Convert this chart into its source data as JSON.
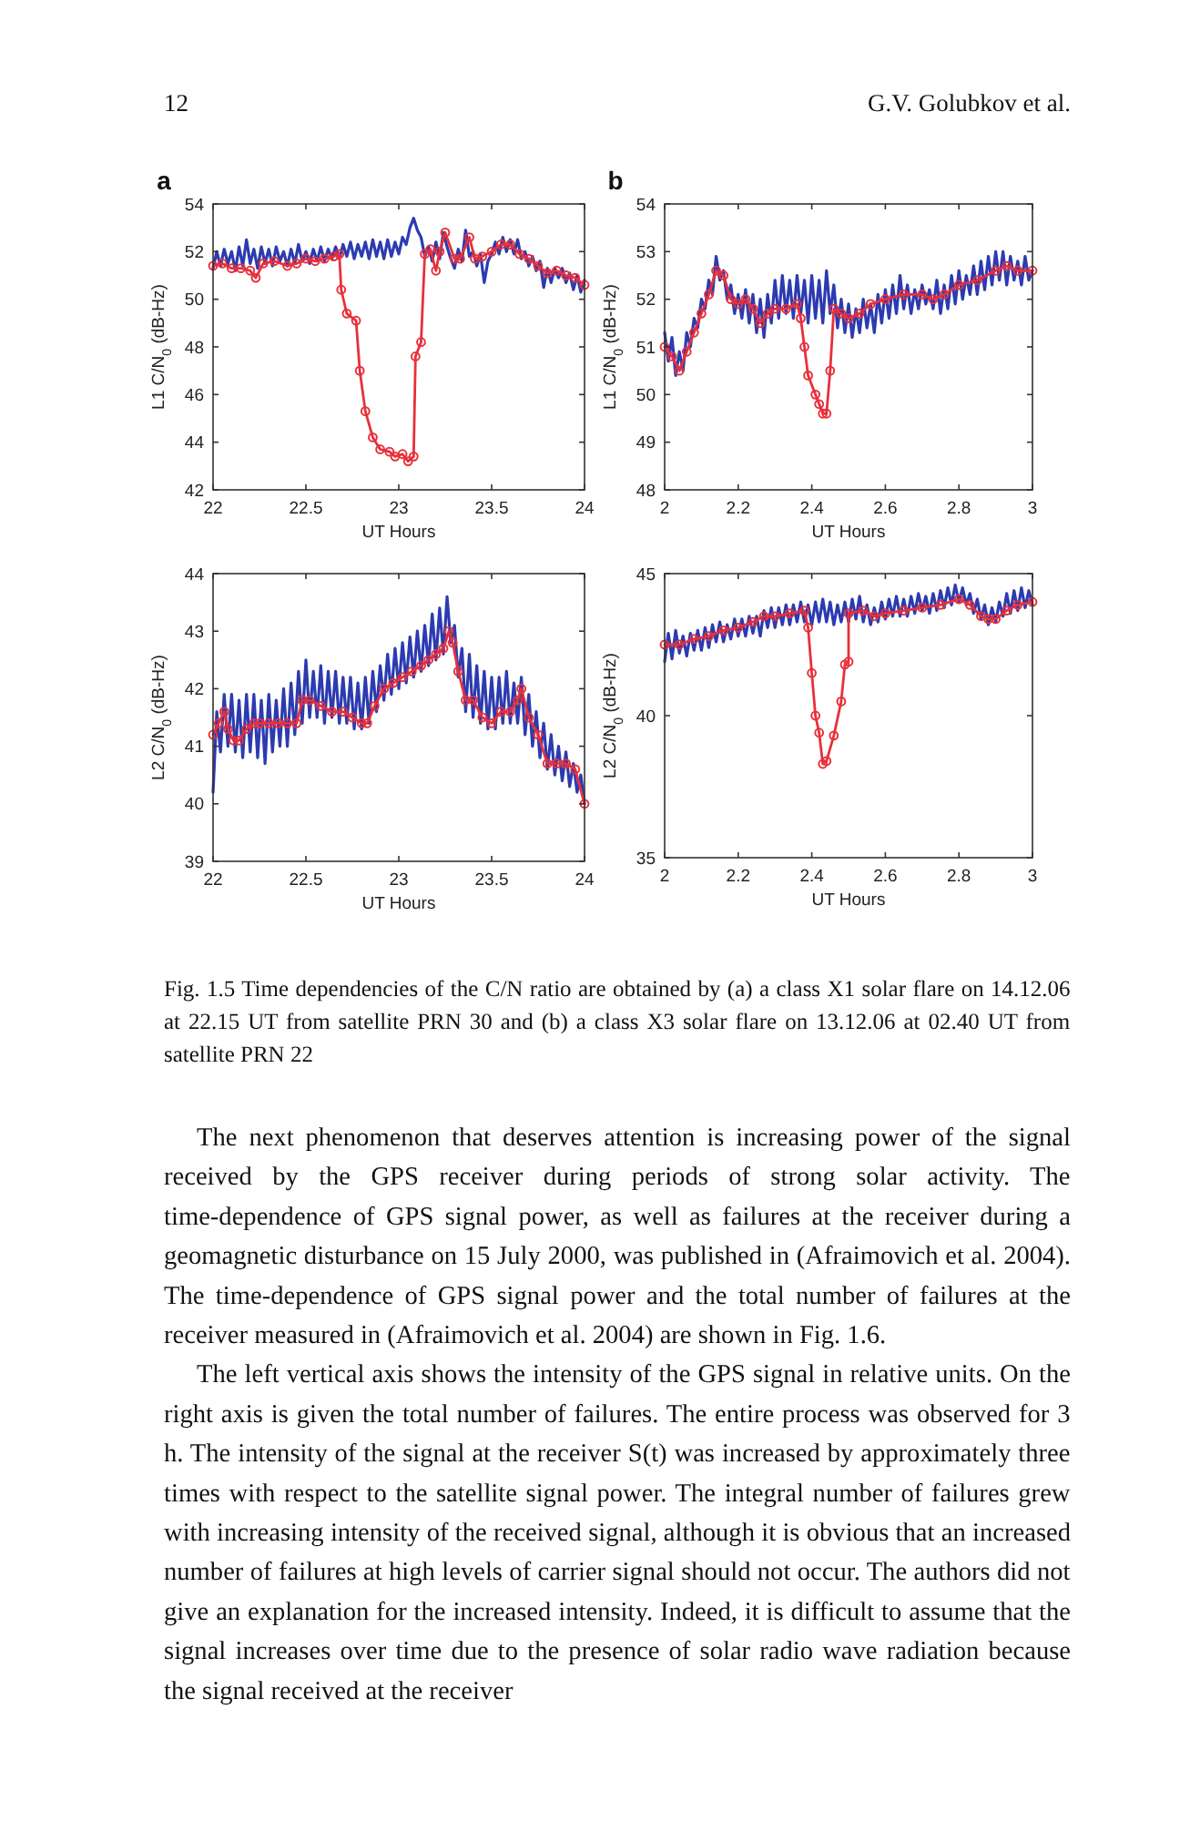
{
  "chart_data": [
    {
      "type": "other",
      "annotations": [
        "12",
        "G.V. Golubkov et al."
      ]
    },
    {
      "type": "line",
      "title": "a",
      "xlabel": "UT Hours",
      "ylabel": "L1 C/N$_{0}$ (dB-Hz)",
      "xlim": [
        22,
        24
      ],
      "xticks": [
        22,
        22.5,
        23,
        23.5,
        24
      ],
      "ylim": [
        42,
        54
      ],
      "yticks": [
        42,
        44,
        46,
        48,
        50,
        52,
        54
      ],
      "series": [
        {
          "color": "#2c3bb0",
          "marker": "none",
          "x": [
            22,
            22.02,
            22.04,
            22.06,
            22.08,
            22.1,
            22.12,
            22.14,
            22.16,
            22.18,
            22.2,
            22.22,
            22.24,
            22.26,
            22.28,
            22.3,
            22.32,
            22.34,
            22.36,
            22.38,
            22.4,
            22.42,
            22.44,
            22.46,
            22.48,
            22.5,
            22.52,
            22.54,
            22.56,
            22.58,
            22.6,
            22.62,
            22.64,
            22.66,
            22.68,
            22.7,
            22.72,
            22.74,
            22.76,
            22.78,
            22.8,
            22.82,
            22.84,
            22.86,
            22.88,
            22.9,
            22.92,
            22.94,
            22.96,
            22.98,
            23,
            23.02,
            23.04,
            23.06,
            23.08,
            23.1,
            23.12,
            23.14,
            23.16,
            23.18,
            23.2,
            23.22,
            23.24,
            23.26,
            23.28,
            23.3,
            23.32,
            23.34,
            23.36,
            23.38,
            23.4,
            23.42,
            23.44,
            23.46,
            23.48,
            23.5,
            23.52,
            23.54,
            23.56,
            23.58,
            23.6,
            23.62,
            23.64,
            23.66,
            23.68,
            23.7,
            23.72,
            23.74,
            23.76,
            23.78,
            23.8,
            23.82,
            23.84,
            23.86,
            23.88,
            23.9,
            23.92,
            23.94,
            23.96,
            23.98,
            24
          ],
          "values": [
            51.3,
            52.0,
            51.4,
            52.1,
            51.5,
            52.0,
            51.2,
            52.2,
            51.4,
            52.5,
            51.5,
            52.1,
            51.3,
            52.2,
            51.5,
            52.1,
            51.4,
            52.2,
            51.6,
            52.0,
            51.4,
            52.1,
            51.5,
            52.3,
            51.6,
            52.0,
            51.5,
            52.1,
            51.6,
            52.2,
            51.6,
            52.1,
            51.7,
            52.2,
            51.7,
            52.3,
            51.8,
            52.4,
            51.7,
            52.3,
            51.8,
            52.4,
            51.7,
            52.5,
            51.8,
            52.4,
            51.7,
            52.5,
            51.8,
            52.4,
            51.9,
            52.6,
            52.3,
            53.0,
            53.4,
            52.9,
            52.6,
            51.8,
            52.2,
            51.6,
            52.4,
            51.7,
            52.8,
            52.2,
            51.7,
            51.3,
            52.1,
            51.6,
            52.9,
            51.8,
            52.0,
            51.4,
            51.9,
            50.7,
            51.6,
            51.9,
            52.4,
            51.9,
            52.6,
            52.0,
            52.5,
            51.9,
            52.5,
            51.7,
            52.0,
            51.4,
            51.8,
            51.2,
            51.6,
            50.5,
            51.3,
            50.7,
            51.3,
            50.9,
            51.3,
            50.7,
            51.1,
            50.4,
            51.0,
            50.3,
            50.8
          ]
        },
        {
          "color": "#e8303a",
          "marker": "circle",
          "x": [
            22,
            22.05,
            22.1,
            22.15,
            22.2,
            22.23,
            22.27,
            22.33,
            22.4,
            22.45,
            22.5,
            22.55,
            22.6,
            22.65,
            22.68,
            22.69,
            22.72,
            22.77,
            22.79,
            22.82,
            22.86,
            22.9,
            22.95,
            22.98,
            23.02,
            23.05,
            23.08,
            23.09,
            23.12,
            23.14,
            23.17,
            23.2,
            23.22,
            23.25,
            23.3,
            23.33,
            23.38,
            23.41,
            23.45,
            23.5,
            23.55,
            23.6,
            23.65,
            23.7,
            23.75,
            23.8,
            23.85,
            23.9,
            23.95,
            24
          ],
          "values": [
            51.4,
            51.5,
            51.3,
            51.3,
            51.2,
            50.9,
            51.5,
            51.6,
            51.4,
            51.5,
            51.7,
            51.6,
            51.7,
            51.8,
            51.9,
            50.4,
            49.4,
            49.1,
            47.0,
            45.3,
            44.2,
            43.7,
            43.6,
            43.4,
            43.5,
            43.2,
            43.4,
            47.6,
            48.2,
            51.9,
            52.1,
            51.2,
            52.0,
            52.8,
            51.7,
            51.7,
            52.6,
            51.7,
            51.8,
            52.0,
            52.3,
            52.3,
            51.9,
            51.7,
            51.4,
            51.1,
            51.2,
            51.0,
            50.9,
            50.6
          ]
        }
      ]
    },
    {
      "type": "line",
      "title": "b",
      "xlabel": "UT Hours",
      "ylabel": "L1 C/N$_{0}$ (dB-Hz)",
      "xlim": [
        2,
        3
      ],
      "xticks": [
        2,
        2.2,
        2.4,
        2.6,
        2.8,
        3
      ],
      "ylim": [
        48,
        54
      ],
      "yticks": [
        48,
        49,
        50,
        51,
        52,
        53,
        54
      ],
      "series": [
        {
          "color": "#2c3bb0",
          "marker": "none",
          "x": [
            2,
            2.01,
            2.02,
            2.03,
            2.04,
            2.05,
            2.06,
            2.07,
            2.08,
            2.09,
            2.1,
            2.11,
            2.12,
            2.13,
            2.14,
            2.15,
            2.16,
            2.17,
            2.18,
            2.19,
            2.2,
            2.21,
            2.22,
            2.23,
            2.24,
            2.25,
            2.26,
            2.27,
            2.28,
            2.29,
            2.3,
            2.31,
            2.32,
            2.33,
            2.34,
            2.35,
            2.36,
            2.37,
            2.38,
            2.39,
            2.4,
            2.41,
            2.42,
            2.43,
            2.44,
            2.45,
            2.46,
            2.47,
            2.48,
            2.49,
            2.5,
            2.51,
            2.52,
            2.53,
            2.54,
            2.55,
            2.56,
            2.57,
            2.58,
            2.59,
            2.6,
            2.61,
            2.62,
            2.63,
            2.64,
            2.65,
            2.66,
            2.67,
            2.68,
            2.69,
            2.7,
            2.71,
            2.72,
            2.73,
            2.74,
            2.75,
            2.76,
            2.77,
            2.78,
            2.79,
            2.8,
            2.81,
            2.82,
            2.83,
            2.84,
            2.85,
            2.86,
            2.87,
            2.88,
            2.89,
            2.9,
            2.91,
            2.92,
            2.93,
            2.94,
            2.95,
            2.96,
            2.97,
            2.98,
            2.99,
            3
          ],
          "values": [
            51.3,
            50.7,
            51.2,
            50.4,
            50.9,
            50.5,
            51.3,
            51.0,
            51.6,
            51.4,
            52.0,
            51.8,
            52.4,
            52.1,
            52.9,
            52.4,
            52.6,
            52.0,
            52.3,
            51.7,
            52.1,
            51.6,
            52.2,
            51.5,
            52.1,
            51.3,
            52.0,
            51.2,
            52.1,
            51.5,
            52.4,
            51.6,
            52.5,
            51.7,
            52.4,
            51.6,
            52.5,
            51.7,
            52.4,
            51.5,
            52.5,
            51.6,
            52.4,
            51.5,
            52.6,
            51.7,
            52.3,
            51.4,
            52.0,
            51.3,
            51.9,
            51.2,
            51.8,
            51.3,
            52.0,
            51.4,
            51.9,
            51.3,
            52.1,
            51.5,
            52.2,
            51.6,
            52.3,
            51.7,
            52.5,
            51.8,
            52.3,
            51.7,
            52.2,
            51.8,
            52.3,
            51.9,
            52.2,
            51.8,
            52.4,
            51.7,
            52.3,
            51.8,
            52.5,
            51.9,
            52.6,
            52.0,
            52.5,
            52.1,
            52.7,
            52.1,
            52.8,
            52.2,
            52.9,
            52.3,
            53.0,
            52.4,
            53.0,
            52.3,
            52.9,
            52.4,
            52.8,
            52.3,
            52.9,
            52.4,
            52.6
          ]
        },
        {
          "color": "#e8303a",
          "marker": "circle",
          "x": [
            2,
            2.02,
            2.04,
            2.06,
            2.08,
            2.1,
            2.12,
            2.14,
            2.16,
            2.18,
            2.2,
            2.22,
            2.24,
            2.26,
            2.28,
            2.3,
            2.33,
            2.36,
            2.37,
            2.38,
            2.39,
            2.41,
            2.42,
            2.43,
            2.44,
            2.45,
            2.46,
            2.48,
            2.5,
            2.53,
            2.56,
            2.6,
            2.65,
            2.7,
            2.73,
            2.76,
            2.8,
            2.85,
            2.9,
            2.93,
            2.96,
            3
          ],
          "values": [
            51.0,
            50.8,
            50.5,
            50.9,
            51.3,
            51.7,
            52.1,
            52.6,
            52.5,
            52.0,
            51.9,
            52.0,
            51.8,
            51.5,
            51.7,
            51.8,
            51.8,
            51.9,
            51.6,
            51.0,
            50.4,
            50.0,
            49.8,
            49.6,
            49.6,
            50.5,
            51.8,
            51.7,
            51.6,
            51.7,
            51.9,
            52.0,
            52.1,
            52.1,
            52.0,
            52.1,
            52.3,
            52.4,
            52.6,
            52.7,
            52.6,
            52.6
          ]
        }
      ]
    },
    {
      "type": "line",
      "xlabel": "UT Hours",
      "ylabel": "L2 C/N$_{0}$ (dB-Hz)",
      "xlim": [
        22,
        24
      ],
      "xticks": [
        22,
        22.5,
        23,
        23.5,
        24
      ],
      "ylim": [
        39,
        44
      ],
      "yticks": [
        39,
        40,
        41,
        42,
        43,
        44
      ],
      "series": [
        {
          "color": "#2c3bb0",
          "marker": "none",
          "x": [
            22,
            22.02,
            22.04,
            22.06,
            22.08,
            22.1,
            22.12,
            22.14,
            22.16,
            22.18,
            22.2,
            22.22,
            22.24,
            22.26,
            22.28,
            22.3,
            22.32,
            22.34,
            22.36,
            22.38,
            22.4,
            22.42,
            22.44,
            22.46,
            22.48,
            22.5,
            22.52,
            22.54,
            22.56,
            22.58,
            22.6,
            22.62,
            22.64,
            22.66,
            22.68,
            22.7,
            22.72,
            22.74,
            22.76,
            22.78,
            22.8,
            22.82,
            22.84,
            22.86,
            22.88,
            22.9,
            22.92,
            22.94,
            22.96,
            22.98,
            23,
            23.02,
            23.04,
            23.06,
            23.08,
            23.1,
            23.12,
            23.14,
            23.16,
            23.18,
            23.2,
            23.22,
            23.24,
            23.26,
            23.28,
            23.3,
            23.32,
            23.34,
            23.36,
            23.38,
            23.4,
            23.42,
            23.44,
            23.46,
            23.48,
            23.5,
            23.52,
            23.54,
            23.56,
            23.58,
            23.6,
            23.62,
            23.64,
            23.66,
            23.68,
            23.7,
            23.72,
            23.74,
            23.76,
            23.78,
            23.8,
            23.82,
            23.84,
            23.86,
            23.88,
            23.9,
            23.92,
            23.94,
            23.96,
            23.98,
            24
          ],
          "values": [
            40.2,
            41.6,
            40.9,
            41.9,
            41.0,
            41.9,
            40.9,
            41.8,
            40.8,
            41.9,
            40.9,
            41.9,
            40.8,
            41.8,
            40.7,
            41.9,
            40.9,
            41.8,
            41.0,
            42.0,
            41.0,
            42.1,
            41.2,
            42.3,
            41.4,
            42.5,
            41.5,
            42.3,
            41.5,
            42.4,
            41.4,
            42.3,
            41.5,
            42.3,
            41.4,
            42.2,
            41.4,
            42.2,
            41.3,
            42.1,
            41.3,
            42.2,
            41.4,
            42.3,
            41.6,
            42.4,
            41.8,
            42.6,
            41.9,
            42.7,
            42.0,
            42.8,
            42.1,
            42.9,
            42.2,
            43.0,
            42.3,
            43.1,
            42.4,
            43.3,
            42.5,
            43.4,
            42.6,
            43.6,
            42.8,
            43.1,
            42.2,
            42.7,
            41.6,
            42.6,
            41.5,
            42.4,
            41.4,
            42.3,
            41.3,
            42.2,
            41.3,
            42.2,
            41.4,
            42.3,
            41.4,
            42.1,
            41.4,
            42.2,
            41.2,
            41.9,
            41.0,
            41.6,
            40.8,
            41.4,
            40.6,
            41.2,
            40.5,
            41.0,
            40.4,
            40.9,
            40.3,
            40.7,
            40.2,
            40.5,
            40.0
          ]
        },
        {
          "color": "#e8303a",
          "marker": "circle",
          "x": [
            22,
            22.03,
            22.06,
            22.08,
            22.11,
            22.14,
            22.18,
            22.22,
            22.25,
            22.3,
            22.35,
            22.4,
            22.45,
            22.48,
            22.52,
            22.58,
            22.64,
            22.7,
            22.75,
            22.8,
            22.83,
            22.87,
            22.92,
            22.97,
            23.02,
            23.07,
            23.12,
            23.16,
            23.2,
            23.24,
            23.27,
            23.29,
            23.32,
            23.36,
            23.4,
            23.45,
            23.5,
            23.55,
            23.6,
            23.64,
            23.66,
            23.7,
            23.75,
            23.8,
            23.85,
            23.9,
            23.95,
            24
          ],
          "values": [
            41.2,
            41.4,
            41.6,
            41.3,
            41.1,
            41.1,
            41.3,
            41.4,
            41.4,
            41.4,
            41.4,
            41.4,
            41.4,
            41.8,
            41.8,
            41.7,
            41.6,
            41.6,
            41.5,
            41.4,
            41.4,
            41.7,
            42.0,
            42.1,
            42.2,
            42.3,
            42.4,
            42.5,
            42.6,
            42.7,
            43.0,
            42.8,
            42.3,
            41.8,
            41.8,
            41.5,
            41.4,
            41.6,
            41.6,
            41.8,
            42.0,
            41.5,
            41.2,
            40.7,
            40.7,
            40.7,
            40.6,
            40.0
          ]
        }
      ]
    },
    {
      "type": "line",
      "xlabel": "UT Hours",
      "ylabel": "L2 C/N$_{0}$ (dB-Hz)",
      "xlim": [
        2,
        3
      ],
      "xticks": [
        2,
        2.2,
        2.4,
        2.6,
        2.8,
        3
      ],
      "ylim": [
        35,
        45
      ],
      "yticks": [
        35,
        40,
        45
      ],
      "series": [
        {
          "color": "#2c3bb0",
          "marker": "none",
          "x": [
            2,
            2.01,
            2.02,
            2.03,
            2.04,
            2.05,
            2.06,
            2.07,
            2.08,
            2.09,
            2.1,
            2.11,
            2.12,
            2.13,
            2.14,
            2.15,
            2.16,
            2.17,
            2.18,
            2.19,
            2.2,
            2.21,
            2.22,
            2.23,
            2.24,
            2.25,
            2.26,
            2.27,
            2.28,
            2.29,
            2.3,
            2.31,
            2.32,
            2.33,
            2.34,
            2.35,
            2.36,
            2.37,
            2.38,
            2.39,
            2.4,
            2.41,
            2.42,
            2.43,
            2.44,
            2.45,
            2.46,
            2.47,
            2.48,
            2.49,
            2.5,
            2.51,
            2.52,
            2.53,
            2.54,
            2.55,
            2.56,
            2.57,
            2.58,
            2.59,
            2.6,
            2.61,
            2.62,
            2.63,
            2.64,
            2.65,
            2.66,
            2.67,
            2.68,
            2.69,
            2.7,
            2.71,
            2.72,
            2.73,
            2.74,
            2.75,
            2.76,
            2.77,
            2.78,
            2.79,
            2.8,
            2.81,
            2.82,
            2.83,
            2.84,
            2.85,
            2.86,
            2.87,
            2.88,
            2.89,
            2.9,
            2.91,
            2.92,
            2.93,
            2.94,
            2.95,
            2.96,
            2.97,
            2.98,
            2.99,
            3
          ],
          "values": [
            41.9,
            42.9,
            42.0,
            43.0,
            42.2,
            42.8,
            42.1,
            42.9,
            42.3,
            43.0,
            42.3,
            43.1,
            42.4,
            43.2,
            42.6,
            43.3,
            42.6,
            43.2,
            42.7,
            43.4,
            42.8,
            43.4,
            42.8,
            43.5,
            42.9,
            43.5,
            42.8,
            43.7,
            43.1,
            43.8,
            43.1,
            43.8,
            43.2,
            43.9,
            43.2,
            43.9,
            43.3,
            44.0,
            43.3,
            43.9,
            43.2,
            44.0,
            43.3,
            44.1,
            43.3,
            44.0,
            43.2,
            43.9,
            43.3,
            44.0,
            43.3,
            44.1,
            43.4,
            44.2,
            43.3,
            43.9,
            43.2,
            43.8,
            43.3,
            44.0,
            43.4,
            44.1,
            43.5,
            44.2,
            43.5,
            44.1,
            43.5,
            44.2,
            43.6,
            44.3,
            43.7,
            44.2,
            43.6,
            44.3,
            43.7,
            44.4,
            43.8,
            44.5,
            43.9,
            44.6,
            44.0,
            44.5,
            43.9,
            44.3,
            43.6,
            44.1,
            43.4,
            43.9,
            43.2,
            43.8,
            43.3,
            44.0,
            43.5,
            44.3,
            43.6,
            44.4,
            43.7,
            44.5,
            43.8,
            44.4,
            43.9
          ]
        },
        {
          "color": "#e8303a",
          "marker": "circle",
          "x": [
            2,
            2.04,
            2.08,
            2.12,
            2.16,
            2.2,
            2.24,
            2.27,
            2.3,
            2.34,
            2.38,
            2.39,
            2.4,
            2.41,
            2.42,
            2.43,
            2.44,
            2.46,
            2.48,
            2.49,
            2.5,
            2.5,
            2.54,
            2.57,
            2.6,
            2.65,
            2.7,
            2.75,
            2.8,
            2.83,
            2.86,
            2.88,
            2.9,
            2.93,
            2.96,
            3
          ],
          "values": [
            42.5,
            42.5,
            42.7,
            42.8,
            43.0,
            43.1,
            43.3,
            43.5,
            43.5,
            43.6,
            43.7,
            43.1,
            41.5,
            40.0,
            39.4,
            38.3,
            38.4,
            39.3,
            40.5,
            41.8,
            41.9,
            43.6,
            43.7,
            43.5,
            43.6,
            43.7,
            43.8,
            43.9,
            44.1,
            43.9,
            43.5,
            43.4,
            43.4,
            43.7,
            43.9,
            44.0
          ]
        }
      ]
    },
    {
      "type": "other",
      "annotations": [
        "Fig. 1.5 Time dependencies of the C/N ratio are obtained by (a) a class X1 solar flare on 14.12.06 at 22.15 UT from satellite PRN 30 and (b) a class X3 solar flare on 13.12.06 at 02.40 UT from satellite PRN 22",
        "The next phenomenon that deserves attention is increasing power of the signal received by the GPS receiver during periods of strong solar activity. The time-dependence of GPS signal power, as well as failures at the receiver during a geomagnetic disturbance on 15 July 2000, was published in (Afraimovich et al. 2004). The time-dependence of GPS signal power and the total number of failures at the receiver measured in (Afraimovich et al. 2004) are shown in Fig. 1.6.",
        "The left vertical axis shows the intensity of the GPS signal in relative units. On the right axis is given the total number of failures. The entire process was observed for 3 h. The intensity of the signal at the receiver S(t) was increased by approximately three times with respect to the satellite signal power. The integral number of failures grew with increasing intensity of the received signal, although it is obvious that an increased number of failures at high levels of carrier signal should not occur. The authors did not give an explanation for the increased intensity. Indeed, it is difficult to assume that the signal increases over time due to the presence of solar radio wave radiation because the signal received at the receiver"
      ]
    }
  ]
}
